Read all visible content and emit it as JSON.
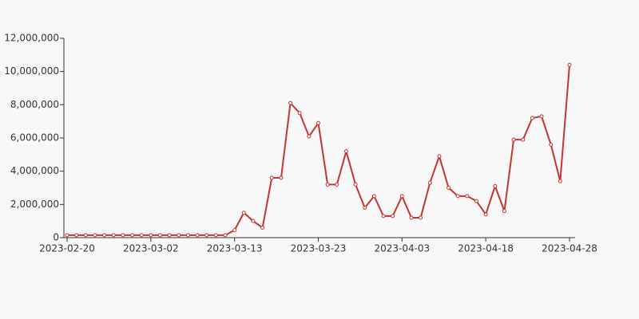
{
  "chart_data": {
    "type": "line",
    "categories": [
      "2023-02-20",
      null,
      null,
      null,
      null,
      null,
      null,
      null,
      null,
      "2023-03-02",
      null,
      null,
      null,
      null,
      null,
      null,
      null,
      null,
      "2023-03-13",
      null,
      null,
      null,
      null,
      null,
      null,
      null,
      null,
      "2023-03-23",
      null,
      null,
      null,
      null,
      null,
      null,
      null,
      null,
      "2023-04-03",
      null,
      null,
      null,
      null,
      null,
      null,
      null,
      null,
      "2023-04-18",
      null,
      null,
      null,
      null,
      null,
      null,
      null,
      null,
      "2023-04-28"
    ],
    "series": [
      {
        "color": "#c23531",
        "values": [
          150000,
          150000,
          150000,
          150000,
          150000,
          150000,
          150000,
          150000,
          150000,
          150000,
          150000,
          150000,
          150000,
          150000,
          150000,
          150000,
          150000,
          150000,
          450000,
          1500000,
          1000000,
          600000,
          3600000,
          3600000,
          8100000,
          7500000,
          6100000,
          6900000,
          3200000,
          3200000,
          5200000,
          3200000,
          1800000,
          2500000,
          1300000,
          1300000,
          2500000,
          1200000,
          1200000,
          3300000,
          4900000,
          3000000,
          2500000,
          2500000,
          2200000,
          1400000,
          3100000,
          1600000,
          5900000,
          5900000,
          7200000,
          7300000,
          5600000,
          3400000,
          10400000
        ]
      }
    ],
    "ylim": [
      0,
      12000000
    ],
    "yticks": [
      0,
      {
        "value": 2000000,
        "label": "2,000,000"
      },
      {
        "value": 4000000,
        "label": "4,000,000"
      },
      {
        "value": 6000000,
        "label": "6,000,000"
      },
      {
        "value": 8000000,
        "label": "8,000,000"
      },
      {
        "value": 10000000,
        "label": "10,000,000"
      },
      {
        "value": 12000000,
        "label": "12,000,000"
      }
    ],
    "grid": false
  }
}
